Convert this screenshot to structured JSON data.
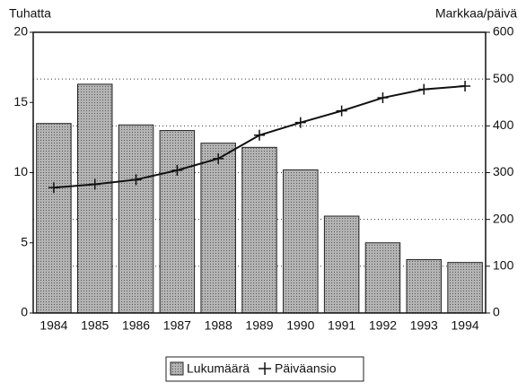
{
  "chart_data": {
    "type": "bar_line",
    "y_label": "Tuhatta",
    "y2_label": "Markkaa/päivä",
    "categories": [
      "1984",
      "1985",
      "1986",
      "1987",
      "1988",
      "1989",
      "1990",
      "1991",
      "1992",
      "1993",
      "1994"
    ],
    "series": [
      {
        "name": "Lukumäärä",
        "type": "bar",
        "color": "#9e9e9e",
        "values": [
          13.5,
          16.3,
          13.4,
          13.0,
          12.1,
          11.8,
          10.2,
          6.9,
          5.0,
          3.8,
          3.6
        ]
      },
      {
        "name": "Päiväansio",
        "type": "line",
        "axis": "y2",
        "color": "#111111",
        "values": [
          268,
          275,
          285,
          305,
          330,
          380,
          407,
          432,
          460,
          478,
          485
        ]
      }
    ],
    "ylim": [
      0,
      20
    ],
    "yticks": [
      0,
      5,
      10,
      15,
      20
    ],
    "y2lim": [
      0,
      600
    ],
    "y2ticks": [
      0,
      100,
      200,
      300,
      400,
      500,
      600
    ],
    "grid": true
  }
}
